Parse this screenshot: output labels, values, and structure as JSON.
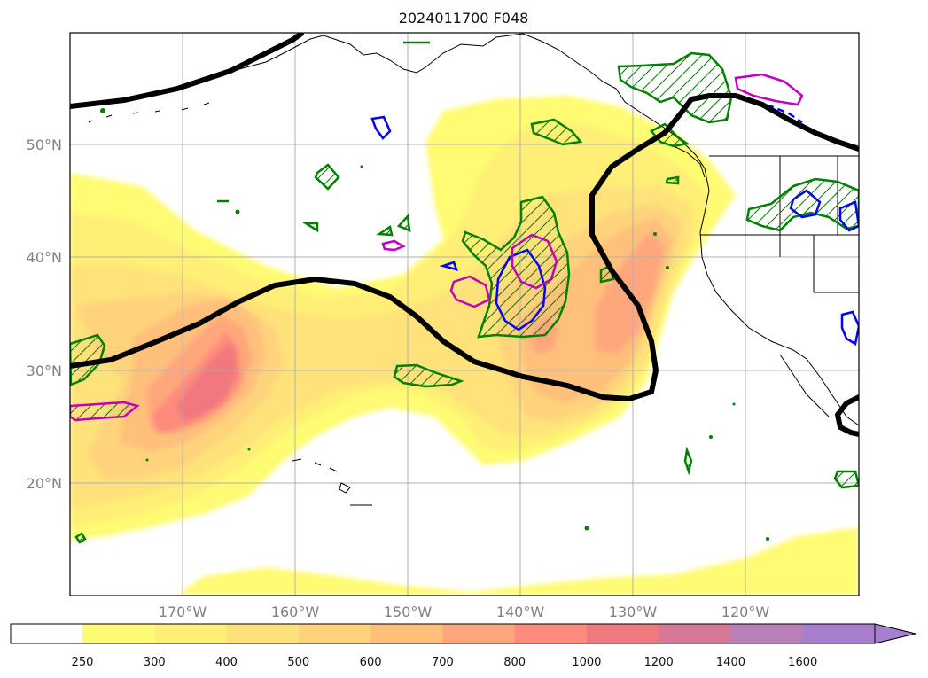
{
  "title": "2024011700 F048",
  "lat_labels": [
    "50°N",
    "40°N",
    "30°N",
    "20°N"
  ],
  "lon_labels": [
    "170°W",
    "160°W",
    "150°W",
    "140°W",
    "130°W",
    "120°W"
  ],
  "colorbar": {
    "ticks": [
      "250",
      "300",
      "400",
      "500",
      "600",
      "700",
      "800",
      "1000",
      "1200",
      "1400",
      "1600"
    ],
    "colors": [
      "#ffffff",
      "#fffb73",
      "#ffef76",
      "#ffe27a",
      "#ffd37c",
      "#ffc07c",
      "#ffa77c",
      "#ff8b7c",
      "#f0787e",
      "#d47a96",
      "#b97fb8",
      "#a77fcc",
      "#a57fd0"
    ],
    "extend": "max"
  },
  "colors": {
    "jet_contour": "#000000",
    "green_contour": "#008000",
    "blue_contour": "#0000ff",
    "magenta_contour": "#c000c0",
    "coastline": "#000000",
    "gridline": "#b0b0b0"
  }
}
